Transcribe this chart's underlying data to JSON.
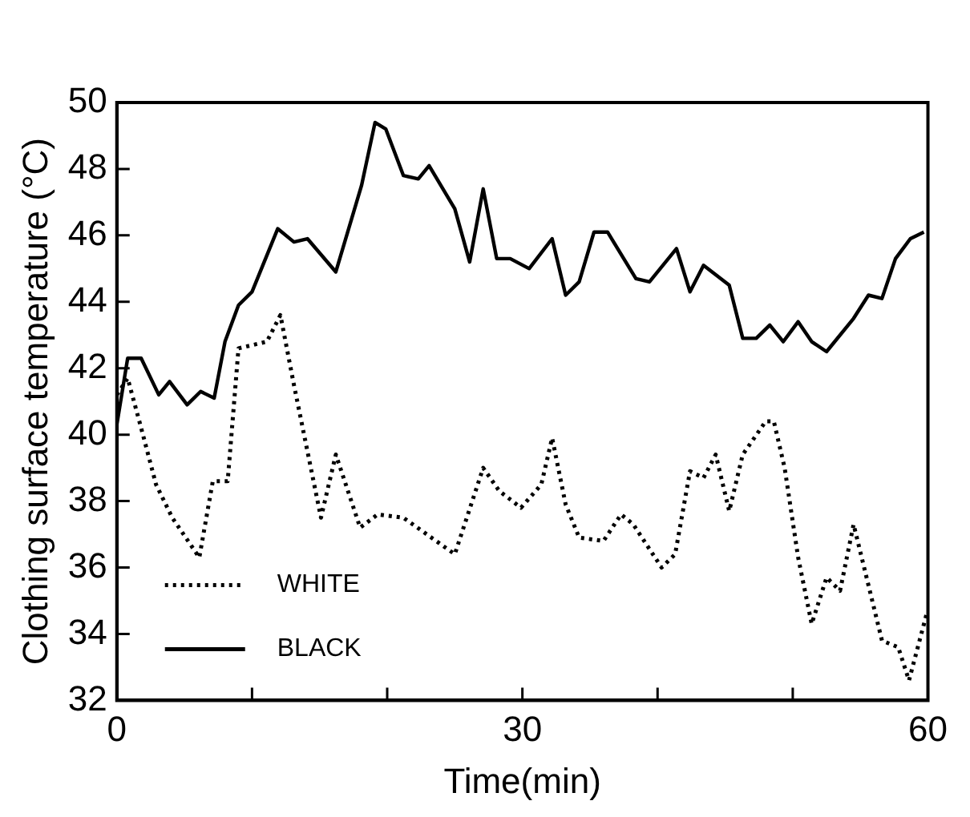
{
  "chart_data": {
    "type": "line",
    "xlabel": "Time(min)",
    "ylabel": "Clothing surface temperature (°C)",
    "xlim": [
      0,
      60
    ],
    "ylim": [
      32,
      50
    ],
    "xticks": [
      0,
      {
        "value": 10,
        "label": null
      },
      {
        "value": 20,
        "label": null
      },
      30,
      {
        "value": 40,
        "label": null
      },
      {
        "value": 50,
        "label": null
      },
      60
    ],
    "yticks": [
      32,
      34,
      36,
      38,
      40,
      42,
      44,
      46,
      48,
      50
    ],
    "grid": false,
    "legend": "bottom left",
    "marker": "none",
    "series": [
      {
        "name": "WHITE",
        "color": "#000000",
        "line_style": "dotted",
        "x": [
          0,
          0.8,
          1.8,
          2.9,
          4.1,
          6.1,
          7.1,
          8.2,
          9,
          11.1,
          12.1,
          13.1,
          15.1,
          16.2,
          18,
          19.3,
          21.2,
          25,
          27.1,
          28.3,
          29.9,
          31.4,
          32.2,
          33.2,
          34.2,
          36,
          37.3,
          38.2,
          40.3,
          41.3,
          42.4,
          43.4,
          44.3,
          45.3,
          46.3,
          48,
          48.6,
          49.4,
          50.4,
          51.4,
          52.5,
          53.5,
          54.5,
          56.6,
          57.8,
          58.6,
          59.9
        ],
        "values": [
          41.2,
          41.7,
          40.2,
          38.5,
          37.5,
          36.3,
          38.6,
          38.6,
          42.6,
          42.8,
          43.6,
          41.5,
          37.5,
          39.4,
          37.2,
          37.6,
          37.5,
          36.4,
          39,
          38.3,
          37.8,
          38.5,
          39.9,
          37.9,
          36.9,
          36.8,
          37.6,
          37.3,
          36,
          36.4,
          38.9,
          38.7,
          39.4,
          37.7,
          39.4,
          40.4,
          40.4,
          39,
          36.3,
          34.3,
          35.7,
          35.3,
          37.3,
          33.8,
          33.6,
          32.6,
          34.6
        ]
      },
      {
        "name": "BLACK",
        "color": "#000000",
        "line_style": "solid",
        "x": [
          0,
          0.8,
          1.8,
          3.1,
          3.9,
          5.2,
          6.2,
          7.2,
          8,
          9,
          10,
          11.9,
          13.1,
          14.1,
          16.2,
          18.1,
          19.1,
          19.9,
          21.2,
          22.3,
          23.1,
          25,
          26.1,
          27.1,
          28.1,
          29.1,
          30.5,
          32.2,
          33.2,
          34.2,
          35.3,
          36.3,
          38.4,
          39.4,
          41.4,
          42.4,
          43.4,
          45.3,
          46.3,
          47.3,
          48.3,
          49.3,
          50.4,
          51.4,
          52.5,
          54.5,
          55.6,
          56.6,
          57.6,
          58.7,
          59.7
        ],
        "values": [
          40.3,
          42.3,
          42.3,
          41.2,
          41.6,
          40.9,
          41.3,
          41.1,
          42.8,
          43.9,
          44.3,
          46.2,
          45.8,
          45.9,
          44.9,
          47.5,
          49.4,
          49.2,
          47.8,
          47.7,
          48.1,
          46.8,
          45.2,
          47.4,
          45.3,
          45.3,
          45,
          45.9,
          44.2,
          44.6,
          46.1,
          46.1,
          44.7,
          44.6,
          45.6,
          44.3,
          45.1,
          44.5,
          42.9,
          42.9,
          43.3,
          42.8,
          43.4,
          42.8,
          42.5,
          43.5,
          44.2,
          44.1,
          45.3,
          45.9,
          46.1
        ]
      }
    ]
  }
}
